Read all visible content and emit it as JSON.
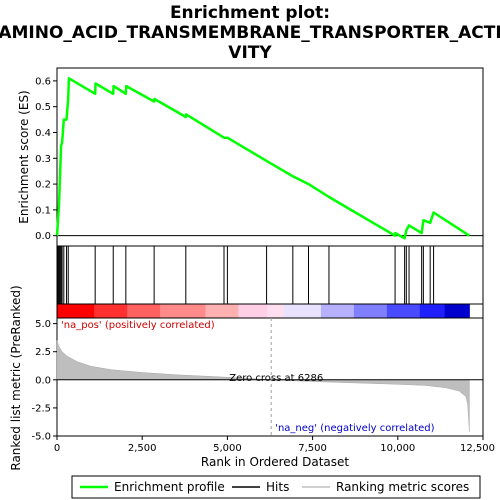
{
  "chart_data": {
    "type": "line",
    "title_lines": [
      "Enrichment plot:",
      "AMINO_ACID_TRANSMEMBRANE_TRANSPORTER_ACTI",
      "VITY"
    ],
    "xlabel": "Rank in Ordered Dataset",
    "ylabel_top": "Enrichment score (ES)",
    "ylabel_bottom": "Ranked list metric (PreRanked)",
    "xlim": [
      0,
      12500
    ],
    "x_ticks": [
      {
        "value": 0,
        "label": "0"
      },
      {
        "value": 2500,
        "label": "2,500"
      },
      {
        "value": 5000,
        "label": "5,000"
      },
      {
        "value": 7500,
        "label": "7,500"
      },
      {
        "value": 10000,
        "label": "10,000"
      },
      {
        "value": 12500,
        "label": "12,500"
      }
    ],
    "es_ylim": [
      -0.04,
      0.65
    ],
    "es_ticks": [
      {
        "value": 0.0,
        "label": "0.0"
      },
      {
        "value": 0.1,
        "label": "0.1"
      },
      {
        "value": 0.2,
        "label": "0.2"
      },
      {
        "value": 0.3,
        "label": "0.3"
      },
      {
        "value": 0.4,
        "label": "0.4"
      },
      {
        "value": 0.5,
        "label": "0.5"
      },
      {
        "value": 0.6,
        "label": "0.6"
      }
    ],
    "metric_ylim": [
      -5.0,
      5.5
    ],
    "metric_ticks": [
      {
        "value": 5.0,
        "label": "5.0"
      },
      {
        "value": 2.5,
        "label": "2.5"
      },
      {
        "value": 0.0,
        "label": "0.0"
      },
      {
        "value": -2.5,
        "label": "-2.5"
      },
      {
        "value": -5.0,
        "label": "-5.0"
      }
    ],
    "n_genes": 12100,
    "zero_cross": 6286,
    "zero_cross_label": "Zero cross at 6286",
    "pos_label": "'na_pos' (positively correlated)",
    "neg_label": "'na_neg' (negatively correlated)",
    "hits": [
      30,
      60,
      90,
      120,
      150,
      200,
      280,
      330,
      1120,
      1650,
      2020,
      2850,
      3780,
      4900,
      5000,
      6150,
      6920,
      7380,
      7980,
      9920,
      10200,
      10250,
      10330,
      10700,
      10750,
      10950,
      11050
    ],
    "es_points": [
      [
        0,
        0.0
      ],
      [
        30,
        0.06
      ],
      [
        60,
        0.12
      ],
      [
        90,
        0.24
      ],
      [
        120,
        0.35
      ],
      [
        150,
        0.36
      ],
      [
        200,
        0.45
      ],
      [
        280,
        0.45
      ],
      [
        330,
        0.53
      ],
      [
        350,
        0.61
      ],
      [
        1120,
        0.55
      ],
      [
        1130,
        0.59
      ],
      [
        1650,
        0.55
      ],
      [
        1660,
        0.58
      ],
      [
        2020,
        0.55
      ],
      [
        2030,
        0.58
      ],
      [
        2850,
        0.52
      ],
      [
        2860,
        0.53
      ],
      [
        3780,
        0.46
      ],
      [
        3790,
        0.47
      ],
      [
        4900,
        0.38
      ],
      [
        5000,
        0.38
      ],
      [
        6150,
        0.29
      ],
      [
        6920,
        0.23
      ],
      [
        7380,
        0.2
      ],
      [
        7980,
        0.15
      ],
      [
        9920,
        0.0
      ],
      [
        9930,
        0.01
      ],
      [
        10200,
        -0.01
      ],
      [
        10250,
        0.02
      ],
      [
        10330,
        0.04
      ],
      [
        10700,
        0.01
      ],
      [
        10750,
        0.06
      ],
      [
        10950,
        0.05
      ],
      [
        11050,
        0.09
      ],
      [
        12100,
        0.0
      ]
    ],
    "metric_curve": [
      [
        0,
        3.5
      ],
      [
        50,
        3.0
      ],
      [
        150,
        2.5
      ],
      [
        300,
        2.1
      ],
      [
        600,
        1.6
      ],
      [
        1000,
        1.2
      ],
      [
        1600,
        0.9
      ],
      [
        2500,
        0.65
      ],
      [
        3500,
        0.45
      ],
      [
        4500,
        0.3
      ],
      [
        5500,
        0.15
      ],
      [
        6286,
        0.0
      ],
      [
        7000,
        -0.1
      ],
      [
        8000,
        -0.2
      ],
      [
        9000,
        -0.3
      ],
      [
        10000,
        -0.4
      ],
      [
        10800,
        -0.5
      ],
      [
        11400,
        -0.7
      ],
      [
        11800,
        -1.0
      ],
      [
        12000,
        -1.5
      ],
      [
        12050,
        -2.2
      ],
      [
        12100,
        -4.6
      ]
    ],
    "legend": [
      {
        "label": "Enrichment profile",
        "color": "#00ff00"
      },
      {
        "label": "Hits",
        "color": "#000000"
      },
      {
        "label": "Ranking metric scores",
        "color": "#c0c0c0"
      }
    ],
    "colors": {
      "es_line": "#00ff00",
      "pos_label": "#cc0000",
      "neg_label": "#0000cc",
      "metric_fill": "#bebebe",
      "zero_line": "#a0a0a0"
    }
  }
}
